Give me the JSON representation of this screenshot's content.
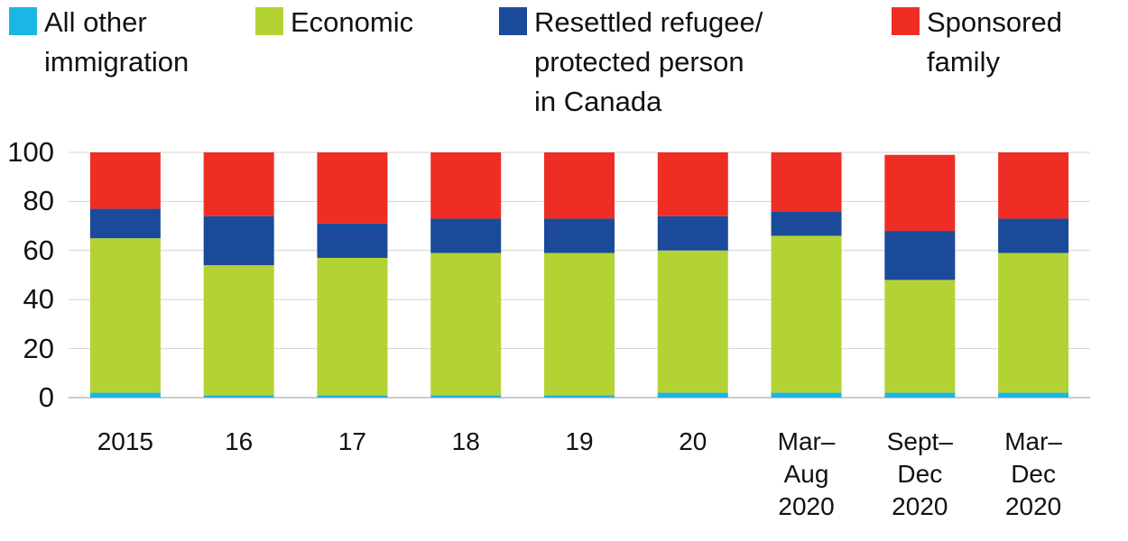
{
  "chart_data": {
    "type": "stacked-bar",
    "categories": [
      "2015",
      "16",
      "17",
      "18",
      "19",
      "20",
      "Mar–\nAug\n2020",
      "Sept–\nDec\n2020",
      "Mar–\nDec\n2020"
    ],
    "series": [
      {
        "name": "All other\nimmigration",
        "color": "#1bb6e6",
        "values": [
          2,
          1,
          1,
          1,
          1,
          2,
          2,
          2,
          2
        ]
      },
      {
        "name": "Economic",
        "color": "#b3d334",
        "values": [
          63,
          53,
          56,
          58,
          58,
          58,
          64,
          46,
          57
        ]
      },
      {
        "name": "Resettled refugee/\nprotected person\nin Canada",
        "color": "#1b4a9b",
        "values": [
          12,
          20,
          14,
          14,
          14,
          14,
          10,
          20,
          14
        ]
      },
      {
        "name": "Sponsored\nfamily",
        "color": "#ee2e24",
        "values": [
          23,
          26,
          29,
          27,
          27,
          26,
          24,
          31,
          27
        ]
      }
    ],
    "ylim": [
      0,
      100
    ],
    "yticks": [
      0,
      20,
      40,
      60,
      80,
      100
    ],
    "grid": true
  }
}
